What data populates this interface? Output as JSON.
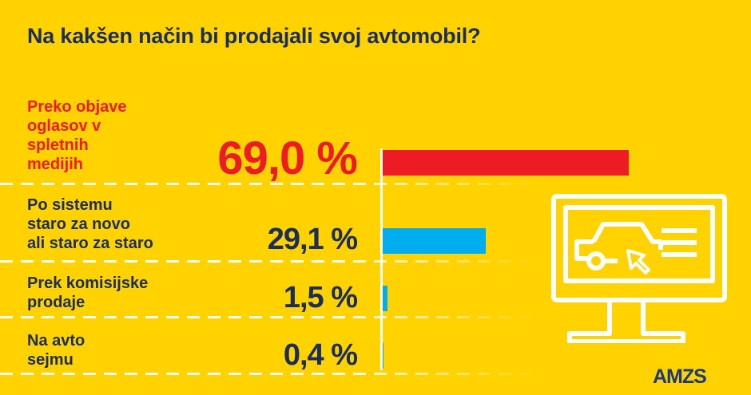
{
  "title": "Na kakšen način bi prodajali svoj avtomobil?",
  "chart_data": {
    "type": "bar",
    "orientation": "horizontal",
    "title": "Na kakšen način bi prodajali svoj avtomobil?",
    "categories": [
      "Preko objave oglasov v spletnih medijih",
      "Po sistemu staro za novo ali staro za staro",
      "Prek komisijske prodaje",
      "Na avto sejmu"
    ],
    "category_lines": [
      [
        "Preko objave",
        "oglasov v",
        "spletnih",
        "medijih"
      ],
      [
        "Po sistemu",
        "staro za novo",
        "ali staro za staro"
      ],
      [
        "Prek komisijske",
        "prodaje"
      ],
      [
        "Na avto",
        "sejmu"
      ]
    ],
    "values": [
      69.0,
      29.1,
      1.5,
      0.4
    ],
    "labels": [
      "69,0 %",
      "29,1 %",
      "1,5 %",
      "0,4 %"
    ],
    "unit": "%",
    "xlim": [
      0,
      100
    ],
    "bar_colors": [
      "#ED1C24",
      "#00AEEF",
      "#00AEEF",
      "#00AEEF"
    ],
    "label_colors": [
      "#ED1C24",
      "#1b2d5b",
      "#1b2d5b",
      "#1b2d5b"
    ],
    "grid": false
  },
  "colors": {
    "background": "#FFD200",
    "text": "#1b2d5b",
    "highlight": "#ED1C24"
  },
  "icon": "computer-monitor-car-ad-icon",
  "logo": "AMZS"
}
